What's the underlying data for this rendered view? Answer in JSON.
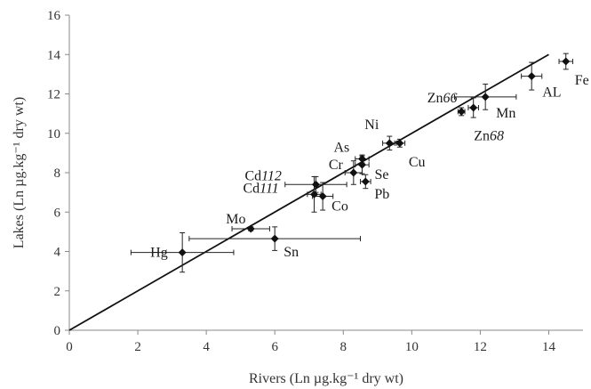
{
  "chart_data": {
    "type": "scatter",
    "title": "",
    "xlabel": "Rivers (Ln µg.kg⁻¹ dry wt)",
    "ylabel": "Lakes (Ln µg.kg⁻¹ dry wt)",
    "xlim": [
      0,
      15
    ],
    "ylim": [
      0,
      16
    ],
    "xticks": [
      "0",
      "2",
      "4",
      "6",
      "8",
      "10",
      "12",
      "14"
    ],
    "yticks": [
      "0",
      "2",
      "4",
      "6",
      "8",
      "10",
      "12",
      "14",
      "16"
    ],
    "grid": false,
    "legend": "none",
    "trendline": {
      "x1": 0,
      "y1": 0,
      "x2": 14,
      "y2": 14
    },
    "points": [
      {
        "label": "Hg",
        "ital": "",
        "x": 3.3,
        "y": 3.95,
        "xerr": 1.5,
        "yerr": 1.0
      },
      {
        "label": "Sn",
        "ital": "",
        "x": 6.0,
        "y": 4.65,
        "xerr": 2.5,
        "yerr": 0.6
      },
      {
        "label": "Mo",
        "ital": "",
        "x": 5.3,
        "y": 5.15,
        "xerr": 0.55,
        "yerr": 0.1
      },
      {
        "label": "Co",
        "ital": "",
        "x": 7.4,
        "y": 6.8,
        "xerr": 0.3,
        "yerr": 0.7
      },
      {
        "label": "Cd",
        "ital": "111",
        "x": 7.15,
        "y": 6.9,
        "xerr": 0.2,
        "yerr": 0.9
      },
      {
        "label": "Cd",
        "ital": "112",
        "x": 7.2,
        "y": 7.4,
        "xerr": 0.9,
        "yerr": 0.4
      },
      {
        "label": "Pb",
        "ital": "",
        "x": 8.65,
        "y": 7.55,
        "xerr": 0.15,
        "yerr": 0.35
      },
      {
        "label": "Cr",
        "ital": "",
        "x": 8.3,
        "y": 8.0,
        "xerr": 0.25,
        "yerr": 0.6
      },
      {
        "label": "Se",
        "ital": "",
        "x": 8.55,
        "y": 8.4,
        "xerr": 0.2,
        "yerr": 0.45
      },
      {
        "label": "As",
        "ital": "",
        "x": 8.55,
        "y": 8.7,
        "xerr": 0.2,
        "yerr": 0.2
      },
      {
        "label": "Ni",
        "ital": "",
        "x": 9.35,
        "y": 9.5,
        "xerr": 0.2,
        "yerr": 0.35
      },
      {
        "label": "Cu",
        "ital": "",
        "x": 9.65,
        "y": 9.5,
        "xerr": 0.15,
        "yerr": 0.2
      },
      {
        "label": "Zn",
        "ital": "68",
        "x": 11.45,
        "y": 11.1,
        "xerr": 0.1,
        "yerr": 0.2
      },
      {
        "label": "Zn",
        "ital": "66",
        "x": 11.8,
        "y": 11.3,
        "xerr": 0.15,
        "yerr": 0.5
      },
      {
        "label": "Mn",
        "ital": "",
        "x": 12.15,
        "y": 11.85,
        "xerr": 0.9,
        "yerr": 0.65
      },
      {
        "label": "AL",
        "ital": "",
        "x": 13.5,
        "y": 12.9,
        "xerr": 0.3,
        "yerr": 0.7
      },
      {
        "label": "Fe",
        "ital": "",
        "x": 14.5,
        "y": 13.65,
        "xerr": 0.2,
        "yerr": 0.4
      }
    ]
  }
}
